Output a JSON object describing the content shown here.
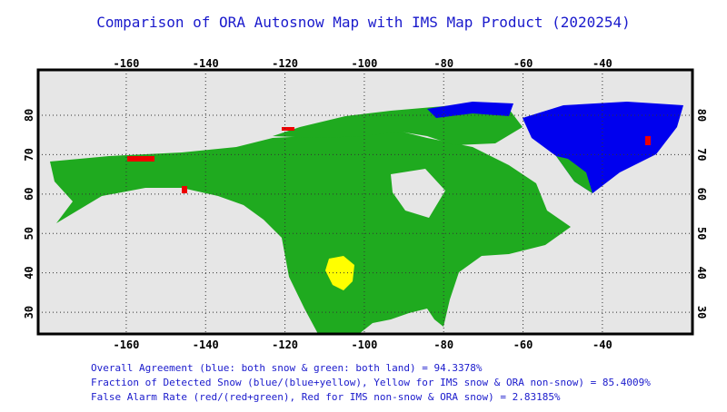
{
  "map": {
    "title": "Comparison of ORA Autosnow Map with IMS Map Product (2020254)",
    "lon_ticks": [
      -160,
      -140,
      -120,
      -100,
      -80,
      -60,
      -40
    ],
    "lat_ticks": [
      30,
      40,
      50,
      60,
      70,
      80
    ],
    "xlim": [
      -182.2,
      -17.3
    ],
    "ylim": [
      24.5,
      91.5
    ],
    "stats": [
      "Overall Agreement (blue: both snow & green: both land) =  94.3378%",
      "Fraction of Detected Snow (blue/(blue+yellow), Yellow for IMS snow & ORA non-snow) = 85.4009%",
      "False Alarm Rate (red/(red+green), Red for IMS non-snow & ORA snow)  =  2.83185%"
    ]
  }
}
